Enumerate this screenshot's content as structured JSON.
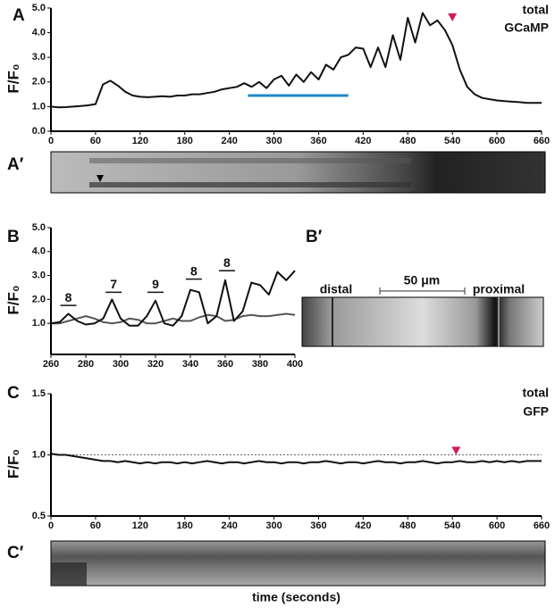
{
  "chart_data": [
    {
      "type": "line",
      "panel": "A",
      "annotation": [
        "total",
        "GCaMP"
      ],
      "ylabel": "F/F₀",
      "x": [
        0,
        10,
        20,
        30,
        40,
        50,
        60,
        70,
        80,
        90,
        100,
        110,
        120,
        130,
        140,
        150,
        160,
        170,
        180,
        190,
        200,
        210,
        220,
        230,
        240,
        250,
        260,
        270,
        280,
        290,
        300,
        310,
        320,
        330,
        340,
        350,
        360,
        370,
        380,
        390,
        400,
        410,
        420,
        430,
        440,
        450,
        460,
        470,
        480,
        490,
        500,
        510,
        520,
        530,
        540,
        550,
        560,
        570,
        580,
        590,
        600,
        610,
        620,
        630,
        640,
        650,
        660
      ],
      "series": [
        {
          "color": "#111111",
          "values": [
            1.0,
            0.97,
            0.98,
            1.0,
            1.02,
            1.05,
            1.1,
            1.9,
            2.05,
            1.85,
            1.6,
            1.45,
            1.4,
            1.38,
            1.4,
            1.42,
            1.4,
            1.45,
            1.45,
            1.5,
            1.5,
            1.55,
            1.6,
            1.7,
            1.75,
            1.8,
            1.95,
            1.8,
            2.0,
            1.75,
            2.1,
            2.25,
            1.85,
            2.3,
            2.0,
            2.4,
            2.1,
            2.7,
            2.5,
            3.0,
            3.1,
            3.4,
            3.35,
            2.6,
            3.4,
            2.6,
            3.9,
            2.9,
            4.6,
            3.6,
            4.8,
            4.3,
            4.5,
            4.1,
            3.5,
            2.5,
            1.8,
            1.5,
            1.35,
            1.3,
            1.25,
            1.22,
            1.2,
            1.18,
            1.15,
            1.15,
            1.15
          ]
        }
      ],
      "xlim": [
        0,
        660
      ],
      "xticks": [
        0,
        60,
        120,
        180,
        240,
        300,
        360,
        420,
        480,
        540,
        600,
        660
      ],
      "ylim": [
        0,
        5
      ],
      "yticks": [
        {
          "value": 0,
          "label": "0.0"
        },
        {
          "value": 1,
          "label": "1.0"
        },
        {
          "value": 2,
          "label": "2.0"
        },
        {
          "value": 3,
          "label": "3.0"
        },
        {
          "value": 4,
          "label": "4.0"
        },
        {
          "value": 5,
          "label": "5.0"
        }
      ],
      "highlight": {
        "x": [
          265,
          400
        ],
        "y": 1.45,
        "color": "#1e88c8"
      },
      "marker": {
        "x": 540,
        "y": 4.6,
        "color": "#d6195f"
      }
    },
    {
      "type": "line",
      "panel": "B",
      "ylabel": "F/F₀",
      "x": [
        260,
        265,
        270,
        275,
        280,
        285,
        290,
        295,
        300,
        305,
        310,
        315,
        320,
        325,
        330,
        335,
        340,
        345,
        350,
        355,
        360,
        365,
        370,
        375,
        380,
        385,
        390,
        395,
        400
      ],
      "series": [
        {
          "color": "#555555",
          "values": [
            1.0,
            1.0,
            1.1,
            1.2,
            1.3,
            1.2,
            1.05,
            1.0,
            1.05,
            1.2,
            1.15,
            1.0,
            1.0,
            1.1,
            1.2,
            1.1,
            1.1,
            1.25,
            1.35,
            1.3,
            1.1,
            1.15,
            1.3,
            1.35,
            1.3,
            1.3,
            1.35,
            1.4,
            1.35
          ]
        },
        {
          "color": "#111111",
          "values": [
            1.0,
            1.05,
            1.4,
            1.1,
            0.95,
            1.0,
            1.2,
            2.0,
            1.2,
            0.9,
            0.9,
            1.3,
            1.95,
            1.0,
            0.9,
            1.3,
            2.4,
            2.3,
            1.0,
            1.3,
            2.8,
            1.1,
            1.5,
            2.7,
            2.6,
            2.2,
            3.15,
            2.8,
            3.2
          ]
        }
      ],
      "cycle_labels": [
        "8",
        "7",
        "9",
        "8",
        "8"
      ],
      "xlim": [
        260,
        400
      ],
      "xticks": [
        260,
        280,
        300,
        320,
        340,
        360,
        380,
        400
      ],
      "ylim": [
        -0.3,
        5
      ],
      "yticks": [
        {
          "value": 1,
          "label": "1.0"
        },
        {
          "value": 2,
          "label": "2.0"
        },
        {
          "value": 3,
          "label": "3.0"
        },
        {
          "value": 4,
          "label": "4.0"
        },
        {
          "value": 5,
          "label": "5.0"
        }
      ]
    },
    {
      "type": "line",
      "panel": "C",
      "annotation": [
        "total",
        "GFP"
      ],
      "ylabel": "F/F₀",
      "xlabel": "time (seconds)",
      "x": [
        0,
        10,
        20,
        30,
        40,
        50,
        60,
        70,
        80,
        90,
        100,
        110,
        120,
        130,
        140,
        150,
        160,
        170,
        180,
        190,
        200,
        210,
        220,
        230,
        240,
        250,
        260,
        270,
        280,
        290,
        300,
        310,
        320,
        330,
        340,
        350,
        360,
        370,
        380,
        390,
        400,
        410,
        420,
        430,
        440,
        450,
        460,
        470,
        480,
        490,
        500,
        510,
        520,
        530,
        540,
        550,
        560,
        570,
        580,
        590,
        600,
        610,
        620,
        630,
        640,
        650,
        660
      ],
      "series": [
        {
          "color": "#111111",
          "values": [
            1.01,
            1.0,
            1.0,
            0.99,
            0.98,
            0.97,
            0.96,
            0.95,
            0.95,
            0.94,
            0.95,
            0.94,
            0.93,
            0.94,
            0.93,
            0.94,
            0.94,
            0.93,
            0.94,
            0.93,
            0.94,
            0.95,
            0.94,
            0.93,
            0.94,
            0.94,
            0.93,
            0.94,
            0.95,
            0.94,
            0.94,
            0.93,
            0.94,
            0.94,
            0.93,
            0.94,
            0.94,
            0.95,
            0.94,
            0.93,
            0.94,
            0.94,
            0.93,
            0.94,
            0.95,
            0.94,
            0.94,
            0.93,
            0.94,
            0.94,
            0.95,
            0.94,
            0.93,
            0.94,
            0.94,
            0.95,
            0.94,
            0.94,
            0.95,
            0.94,
            0.95,
            0.94,
            0.95,
            0.94,
            0.95,
            0.95,
            0.95
          ]
        }
      ],
      "xlim": [
        0,
        660
      ],
      "xticks": [
        0,
        60,
        120,
        180,
        240,
        300,
        360,
        420,
        480,
        540,
        600,
        660
      ],
      "ylim": [
        0.5,
        1.5
      ],
      "yticks": [
        {
          "value": 0.5,
          "label": "0.5"
        },
        {
          "value": 1,
          "label": "1.0"
        },
        {
          "value": 1.5,
          "label": "1.5"
        }
      ],
      "hline": 1,
      "marker": {
        "x": 545,
        "y": 1.03,
        "color": "#d6195f"
      }
    }
  ],
  "images": [
    {
      "panel": "A′"
    },
    {
      "panel": "B′",
      "labels": [
        "distal",
        "50 μm",
        "proximal"
      ]
    },
    {
      "panel": "C′"
    }
  ]
}
